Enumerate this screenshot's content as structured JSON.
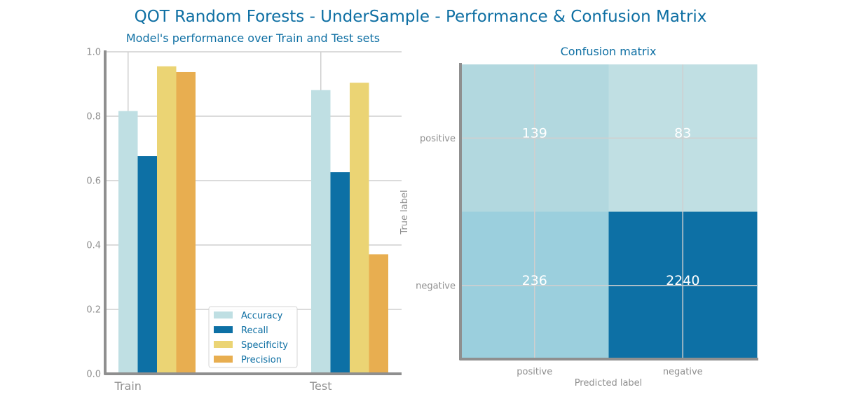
{
  "figure": {
    "title": "QOT Random Forests - UnderSample - Performance & Confusion Matrix"
  },
  "colors": {
    "title": "#0e6fa3",
    "axis": "#8f8f8f",
    "tick_label": "#8f8f8f",
    "grid": "#cfcfcf",
    "series": [
      "#bfdfe3",
      "#0d70a5",
      "#ebd474",
      "#e8ae50"
    ],
    "matrix_cells": [
      "#b2d8df",
      "#c0dfe3",
      "#9bcfdd",
      "#0d70a5"
    ]
  },
  "chart_data": [
    {
      "type": "bar",
      "title": "Model's performance over Train and Test sets",
      "xlabel": "",
      "ylabel": "",
      "categories": [
        "Train",
        "Test"
      ],
      "ylim": [
        0,
        1
      ],
      "yticks": [
        "0.0",
        "0.2",
        "0.4",
        "0.6",
        "0.8",
        "1.0"
      ],
      "grid": true,
      "legend": "bottom-right",
      "series": [
        {
          "name": "Accuracy",
          "values": [
            0.816,
            0.881
          ]
        },
        {
          "name": "Recall",
          "values": [
            0.676,
            0.626
          ]
        },
        {
          "name": "Specificity",
          "values": [
            0.955,
            0.904
          ]
        },
        {
          "name": "Precision",
          "values": [
            0.937,
            0.371
          ]
        }
      ]
    },
    {
      "type": "heatmap",
      "title": "Confusion matrix",
      "xlabel": "Predicted label",
      "ylabel": "True label",
      "x_categories": [
        "positive",
        "negative"
      ],
      "y_categories": [
        "positive",
        "negative"
      ],
      "values": [
        [
          139,
          83
        ],
        [
          236,
          2240
        ]
      ],
      "grid": true
    }
  ]
}
